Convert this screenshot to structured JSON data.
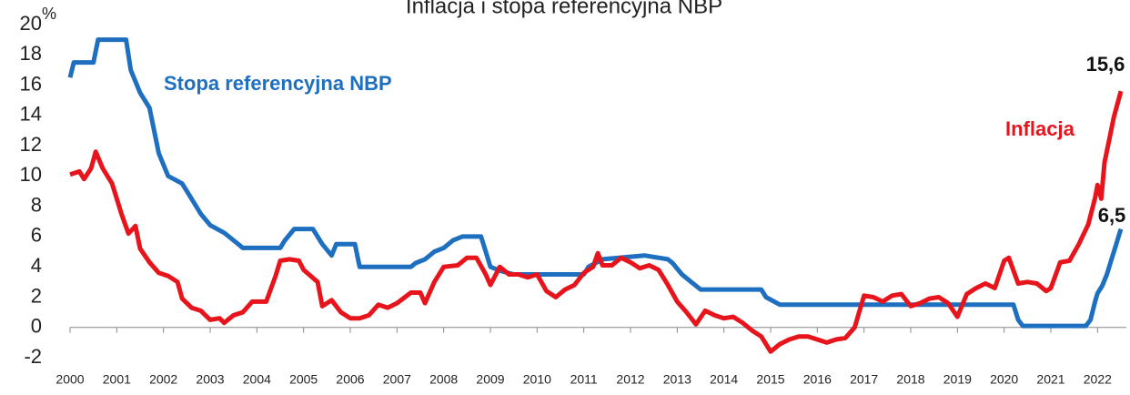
{
  "chart_data": {
    "type": "line",
    "title": "Inflacja i stopa referencyjna NBP",
    "y_unit": "%",
    "xlim": [
      2000,
      2022.5
    ],
    "xticks": [
      2000,
      2001,
      2002,
      2003,
      2004,
      2005,
      2006,
      2007,
      2008,
      2009,
      2010,
      2011,
      2012,
      2013,
      2014,
      2015,
      2016,
      2017,
      2018,
      2019,
      2020,
      2021,
      2022
    ],
    "ylim": [
      -2,
      20
    ],
    "yticks": [
      -2,
      0,
      2,
      4,
      6,
      8,
      10,
      12,
      14,
      16,
      18,
      20
    ],
    "grid": false,
    "series": [
      {
        "name": "Stopa referencyjna NBP",
        "color": "#1f6fc0",
        "x": [
          2000.0,
          2000.08,
          2000.5,
          2000.6,
          2001.2,
          2001.3,
          2001.5,
          2001.7,
          2001.9,
          2002.1,
          2002.4,
          2002.6,
          2002.8,
          2003.0,
          2003.3,
          2003.6,
          2003.7,
          2004.5,
          2004.6,
          2004.8,
          2005.2,
          2005.4,
          2005.6,
          2005.7,
          2006.1,
          2006.2,
          2007.3,
          2007.4,
          2007.6,
          2007.8,
          2008.0,
          2008.2,
          2008.4,
          2008.8,
          2008.9,
          2009.0,
          2009.2,
          2009.5,
          2011.0,
          2011.1,
          2011.4,
          2012.3,
          2012.8,
          2012.9,
          2013.1,
          2013.3,
          2013.5,
          2014.8,
          2014.9,
          2015.2,
          2020.2,
          2020.3,
          2020.4,
          2021.75,
          2021.85,
          2021.95,
          2022.0,
          2022.1,
          2022.2,
          2022.3,
          2022.4,
          2022.45,
          2022.5
        ],
        "values": [
          16.5,
          17.5,
          17.5,
          19,
          19,
          17,
          15.5,
          14.5,
          11.5,
          10,
          9.5,
          8.5,
          7.5,
          6.75,
          6.25,
          5.5,
          5.25,
          5.25,
          5.75,
          6.5,
          6.5,
          5.5,
          4.75,
          5.5,
          5.5,
          4.0,
          4.0,
          4.25,
          4.5,
          5.0,
          5.25,
          5.75,
          6.0,
          6.0,
          5.0,
          4.0,
          3.75,
          3.5,
          3.5,
          4.0,
          4.5,
          4.75,
          4.5,
          4.25,
          3.5,
          3.0,
          2.5,
          2.5,
          2.0,
          1.5,
          1.5,
          0.5,
          0.1,
          0.1,
          0.5,
          1.75,
          2.25,
          2.75,
          3.5,
          4.5,
          5.5,
          6.0,
          6.5
        ]
      },
      {
        "name": "Inflacja",
        "color": "#e8141c",
        "x": [
          2000.0,
          2000.2,
          2000.3,
          2000.45,
          2000.55,
          2000.7,
          2000.9,
          2001.1,
          2001.25,
          2001.4,
          2001.5,
          2001.7,
          2001.9,
          2002.1,
          2002.3,
          2002.4,
          2002.6,
          2002.8,
          2003.0,
          2003.2,
          2003.3,
          2003.5,
          2003.7,
          2003.9,
          2004.2,
          2004.4,
          2004.5,
          2004.7,
          2004.9,
          2005.0,
          2005.3,
          2005.4,
          2005.6,
          2005.8,
          2006.0,
          2006.2,
          2006.4,
          2006.6,
          2006.8,
          2007.0,
          2007.3,
          2007.5,
          2007.6,
          2007.8,
          2008.0,
          2008.3,
          2008.5,
          2008.7,
          2008.9,
          2009.0,
          2009.2,
          2009.4,
          2009.6,
          2009.8,
          2010.0,
          2010.2,
          2010.4,
          2010.6,
          2010.8,
          2011.0,
          2011.2,
          2011.3,
          2011.4,
          2011.6,
          2011.8,
          2012.0,
          2012.2,
          2012.4,
          2012.6,
          2012.8,
          2013.0,
          2013.2,
          2013.4,
          2013.6,
          2013.8,
          2014.0,
          2014.2,
          2014.4,
          2014.6,
          2014.8,
          2015.0,
          2015.2,
          2015.4,
          2015.6,
          2015.8,
          2016.0,
          2016.2,
          2016.4,
          2016.6,
          2016.8,
          2017.0,
          2017.2,
          2017.4,
          2017.6,
          2017.8,
          2018.0,
          2018.2,
          2018.4,
          2018.6,
          2018.8,
          2019.0,
          2019.2,
          2019.4,
          2019.6,
          2019.8,
          2020.0,
          2020.1,
          2020.3,
          2020.5,
          2020.7,
          2020.9,
          2021.0,
          2021.2,
          2021.4,
          2021.6,
          2021.8,
          2021.95,
          2022.0,
          2022.08,
          2022.15,
          2022.25,
          2022.35,
          2022.5
        ],
        "values": [
          10.1,
          10.3,
          9.8,
          10.5,
          11.6,
          10.5,
          9.5,
          7.5,
          6.2,
          6.7,
          5.2,
          4.3,
          3.6,
          3.4,
          3.0,
          1.9,
          1.3,
          1.1,
          0.5,
          0.6,
          0.3,
          0.8,
          1.0,
          1.7,
          1.7,
          3.4,
          4.4,
          4.5,
          4.4,
          3.8,
          3.0,
          1.4,
          1.8,
          1.0,
          0.6,
          0.6,
          0.8,
          1.5,
          1.3,
          1.6,
          2.3,
          2.3,
          1.6,
          3.0,
          4.0,
          4.1,
          4.6,
          4.6,
          3.5,
          2.8,
          4.0,
          3.5,
          3.5,
          3.3,
          3.5,
          2.4,
          2.0,
          2.5,
          2.8,
          3.6,
          4.0,
          4.9,
          4.1,
          4.1,
          4.6,
          4.3,
          3.9,
          4.1,
          3.8,
          2.8,
          1.7,
          1.0,
          0.2,
          1.1,
          0.8,
          0.6,
          0.7,
          0.3,
          -0.2,
          -0.6,
          -1.6,
          -1.1,
          -0.8,
          -0.6,
          -0.6,
          -0.8,
          -1.0,
          -0.8,
          -0.7,
          0.0,
          2.1,
          2.0,
          1.7,
          2.1,
          2.2,
          1.4,
          1.6,
          1.9,
          2.0,
          1.6,
          0.7,
          2.2,
          2.6,
          2.9,
          2.6,
          4.4,
          4.6,
          2.9,
          3.0,
          2.9,
          2.4,
          2.6,
          4.3,
          4.4,
          5.5,
          6.8,
          8.6,
          9.4,
          8.5,
          10.9,
          12.4,
          13.9,
          15.6
        ]
      }
    ],
    "annotations": [
      "Stopa referencyjna NBP",
      "Inflacja",
      "15,6",
      "6,5"
    ]
  }
}
